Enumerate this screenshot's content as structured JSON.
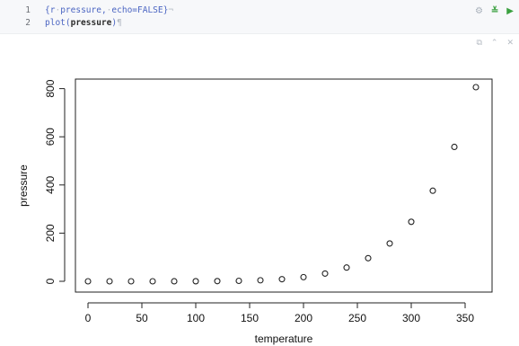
{
  "editor": {
    "lines": [
      {
        "number": "1",
        "text": "{r·pressure,·echo=FALSE}¬"
      },
      {
        "number": "2",
        "text": "plot(pressure)¶"
      }
    ],
    "line1_segments": [
      "{r",
      "·",
      "pressure,",
      "·",
      "echo=FALSE}",
      "¬"
    ],
    "line2_segments": [
      "plot(",
      "pressure",
      ")",
      "¶"
    ],
    "chunk_tool_icons": [
      "settings-icon",
      "run-previous-chunks-icon",
      "run-chunk-icon"
    ],
    "output_tool_icons": [
      "expand-output-icon",
      "collapse-output-icon",
      "close-output-icon"
    ]
  },
  "chart_data": {
    "type": "scatter",
    "xlabel": "temperature",
    "ylabel": "pressure",
    "xlim": [
      0,
      360
    ],
    "ylim": [
      0,
      806
    ],
    "xticks": [
      "0",
      "50",
      "100",
      "150",
      "200",
      "250",
      "300",
      "350"
    ],
    "yticks": [
      "0",
      "200",
      "400",
      "600",
      "800"
    ],
    "x": [
      0,
      20,
      40,
      60,
      80,
      100,
      120,
      140,
      160,
      180,
      200,
      220,
      240,
      260,
      280,
      300,
      320,
      340,
      360
    ],
    "y": [
      0.0002,
      0.0012,
      0.006,
      0.03,
      0.09,
      0.27,
      0.75,
      1.85,
      4.2,
      8.8,
      17.3,
      32.1,
      57,
      96,
      157,
      247,
      376,
      558,
      806
    ],
    "marker": "open-circle",
    "grid": false,
    "colors": {
      "marker": "#222222",
      "axis": "#222222"
    }
  }
}
